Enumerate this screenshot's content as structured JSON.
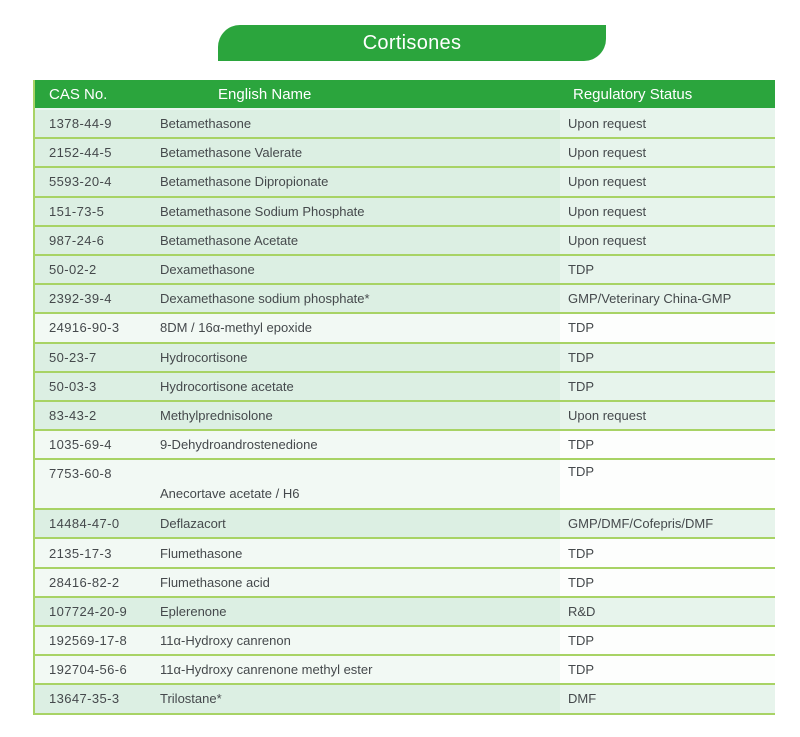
{
  "title": "Cortisones",
  "colors": {
    "brand_green": "#2BA53D",
    "line_olive": "#A8D365",
    "row_green": "#DCEFE3",
    "row_green_status": "#E7F4EC",
    "row_white": "#F2F9F4",
    "row_white_status": "#FDFEFD"
  },
  "table": {
    "headers": [
      "CAS No.",
      "English Name",
      "Regulatory Status"
    ],
    "rows": [
      {
        "cas": "1378-44-9",
        "name": "Betamethasone",
        "status": "Upon request",
        "tint": "green",
        "tall": false
      },
      {
        "cas": "2152-44-5",
        "name": "Betamethasone Valerate",
        "status": "Upon request",
        "tint": "green",
        "tall": false
      },
      {
        "cas": "5593-20-4",
        "name": "Betamethasone Dipropionate",
        "status": "Upon request",
        "tint": "green",
        "tall": false
      },
      {
        "cas": "151-73-5",
        "name": "Betamethasone Sodium Phosphate",
        "status": "Upon request",
        "tint": "green",
        "tall": false
      },
      {
        "cas": "987-24-6",
        "name": "Betamethasone Acetate",
        "status": "Upon request",
        "tint": "green",
        "tall": false
      },
      {
        "cas": "50-02-2",
        "name": "Dexamethasone",
        "status": "TDP",
        "tint": "green",
        "tall": false
      },
      {
        "cas": "2392-39-4",
        "name": "Dexamethasone sodium phosphate*",
        "status": "GMP/Veterinary China-GMP",
        "tint": "green",
        "tall": false
      },
      {
        "cas": "24916-90-3",
        "name": "8DM / 16α-methyl epoxide",
        "status": "TDP",
        "tint": "white",
        "tall": false
      },
      {
        "cas": "50-23-7",
        "name": "Hydrocortisone",
        "status": "TDP",
        "tint": "green",
        "tall": false
      },
      {
        "cas": "50-03-3",
        "name": "Hydrocortisone acetate",
        "status": "TDP",
        "tint": "green",
        "tall": false
      },
      {
        "cas": "83-43-2",
        "name": "Methylprednisolone",
        "status": "Upon request",
        "tint": "green",
        "tall": false
      },
      {
        "cas": "1035-69-4",
        "name": "9-Dehydroandrostenedione",
        "status": "TDP",
        "tint": "white",
        "tall": false
      },
      {
        "cas": "7753-60-8",
        "name": "Anecortave acetate  /  H6",
        "status": "TDP",
        "tint": "white",
        "tall": true
      },
      {
        "cas": "14484-47-0",
        "name": "Deflazacort",
        "status": "GMP/DMF/Cofepris/DMF",
        "tint": "green",
        "tall": false
      },
      {
        "cas": "2135-17-3",
        "name": "Flumethasone",
        "status": "TDP",
        "tint": "white",
        "tall": false
      },
      {
        "cas": "28416-82-2",
        "name": "Flumethasone acid",
        "status": "TDP",
        "tint": "white",
        "tall": false
      },
      {
        "cas": "107724-20-9",
        "name": "Eplerenone",
        "status": "R&D",
        "tint": "green",
        "tall": false
      },
      {
        "cas": "192569-17-8",
        "name": "11α-Hydroxy canrenon",
        "status": "TDP",
        "tint": "white",
        "tall": false
      },
      {
        "cas": "192704-56-6",
        "name": "11α-Hydroxy canrenone methyl ester",
        "status": "TDP",
        "tint": "white",
        "tall": false
      },
      {
        "cas": "13647-35-3",
        "name": "Trilostane*",
        "status": "DMF",
        "tint": "green",
        "tall": false
      }
    ]
  }
}
